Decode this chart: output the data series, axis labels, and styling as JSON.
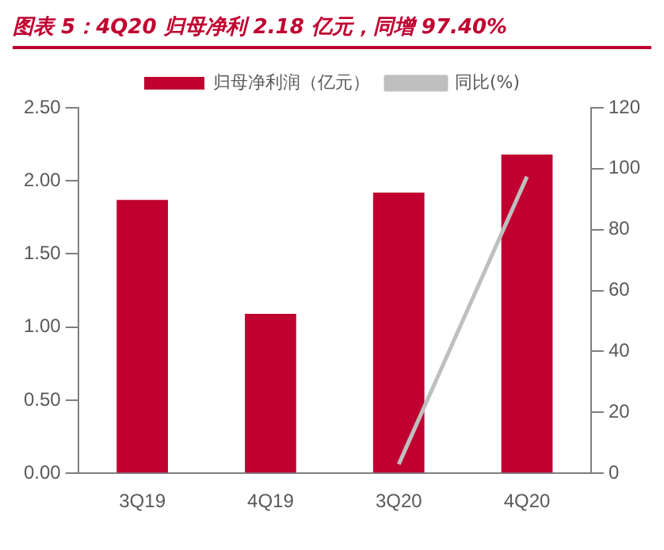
{
  "chart_data": {
    "type": "bar",
    "title": "图表 5：4Q20 归母净利 2.18 亿元，同增 97.40%",
    "categories": [
      "3Q19",
      "4Q19",
      "3Q20",
      "4Q20"
    ],
    "series": [
      {
        "name": "归母净利润（亿元）",
        "color": "#c00030",
        "values": [
          1.87,
          1.09,
          1.92,
          2.18
        ]
      },
      {
        "name": "同比(%)",
        "type": "line",
        "axis": "y2",
        "color": "#bfbfbf",
        "values": [
          null,
          null,
          3,
          97.4
        ]
      }
    ],
    "ylim": [
      0,
      2.5
    ],
    "yticks": [
      {
        "value": 0,
        "label": "0.00"
      },
      {
        "value": 0.5,
        "label": "0.50"
      },
      {
        "value": 1,
        "label": "1.00"
      },
      {
        "value": 1.5,
        "label": "1.50"
      },
      {
        "value": 2,
        "label": "2.00"
      },
      {
        "value": 2.5,
        "label": "2.50"
      }
    ],
    "y2lim": [
      0,
      120
    ],
    "y2ticks": [
      0,
      20,
      40,
      60,
      80,
      100,
      120
    ],
    "legend": "top",
    "grid": false,
    "marker": "none"
  }
}
